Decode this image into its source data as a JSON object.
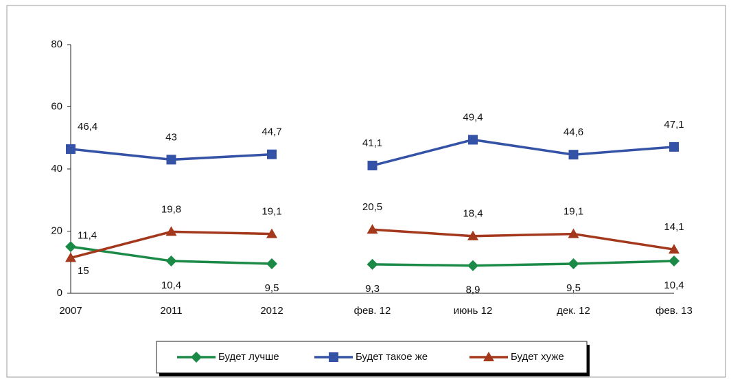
{
  "chart_data": {
    "type": "line",
    "categories": [
      "2007",
      "2011",
      "2012",
      null,
      "фев. 12",
      "июнь 12",
      "дек. 12",
      "фев. 13"
    ],
    "series": [
      {
        "name": "Будет лучше",
        "color": "#1b8a47",
        "marker": "diamond",
        "values": [
          15,
          10.4,
          9.5,
          null,
          9.3,
          8.9,
          9.5,
          10.4
        ],
        "value_labels": [
          "15",
          "10,4",
          "9,5",
          null,
          "9,3",
          "8,9",
          "9,5",
          "10,4"
        ]
      },
      {
        "name": "Будет такое же",
        "color": "#3452a6",
        "marker": "square",
        "values": [
          46.4,
          43,
          44.7,
          null,
          41.1,
          49.4,
          44.6,
          47.1
        ],
        "value_labels": [
          "46,4",
          "43",
          "44,7",
          null,
          "41,1",
          "49,4",
          "44,6",
          "47,1"
        ]
      },
      {
        "name": "Будет хуже",
        "color": "#a3381c",
        "marker": "triangle",
        "values": [
          11.4,
          19.8,
          19.1,
          null,
          20.5,
          18.4,
          19.1,
          14.1
        ],
        "value_labels": [
          "11,4",
          "19,8",
          "19,1",
          null,
          "20,5",
          "18,4",
          "19,1",
          "14,1"
        ]
      }
    ],
    "ylim": [
      0,
      80
    ],
    "yticks": [
      0,
      20,
      40,
      60,
      80
    ],
    "grid": false,
    "legend": "bottom"
  }
}
